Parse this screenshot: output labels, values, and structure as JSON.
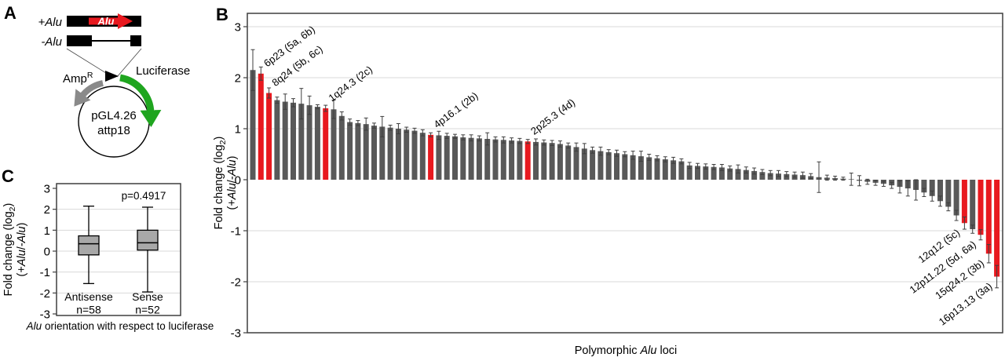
{
  "panel_a": {
    "label": "A",
    "plus_alu": "+Alu",
    "minus_alu": "-Alu",
    "alu_insert": "Alu",
    "amp": "Amp",
    "amp_sup": "R",
    "luciferase": "Luciferase",
    "plasmid_name": "pGL4.26",
    "plasmid_site": "attp18",
    "colors": {
      "alu_red": "#e8191f",
      "luciferase_green": "#1fa51f",
      "amp_gray": "#8a8a8a",
      "construct_black": "#000000"
    }
  },
  "panel_b": {
    "label": "B"
  },
  "panel_c": {
    "label": "C"
  },
  "chart_data": [
    {
      "panel": "B",
      "type": "bar",
      "title": "",
      "ylabel_parts": {
        "pre": "Fold change (log",
        "sub": "2",
        "post": ")",
        "line2": [
          "(+",
          "Alu",
          "/-",
          "Alu",
          ")"
        ]
      },
      "xlabel_parts": [
        "Polymorphic ",
        "Alu",
        " loci"
      ],
      "ylim": [
        -3,
        3
      ],
      "yticks": [
        3,
        2,
        1,
        0,
        -1,
        -2,
        -3
      ],
      "grid": true,
      "bar_color": "#595959",
      "highlight_color": "#e8191f",
      "error_color": "#3f3f3f",
      "values": [
        2.15,
        2.08,
        1.7,
        1.56,
        1.53,
        1.51,
        1.49,
        1.46,
        1.43,
        1.4,
        1.38,
        1.25,
        1.13,
        1.11,
        1.09,
        1.06,
        1.04,
        1.02,
        1.0,
        0.98,
        0.96,
        0.92,
        0.88,
        0.87,
        0.86,
        0.85,
        0.83,
        0.82,
        0.81,
        0.8,
        0.79,
        0.78,
        0.77,
        0.76,
        0.75,
        0.74,
        0.73,
        0.72,
        0.7,
        0.67,
        0.64,
        0.61,
        0.58,
        0.56,
        0.54,
        0.52,
        0.5,
        0.48,
        0.46,
        0.44,
        0.42,
        0.4,
        0.38,
        0.36,
        0.28,
        0.27,
        0.26,
        0.25,
        0.24,
        0.22,
        0.21,
        0.19,
        0.17,
        0.15,
        0.13,
        0.12,
        0.11,
        0.1,
        0.09,
        0.07,
        0.05,
        0.04,
        0.03,
        0.02,
        0.01,
        -0.02,
        -0.04,
        -0.06,
        -0.08,
        -0.11,
        -0.14,
        -0.17,
        -0.2,
        -0.25,
        -0.32,
        -0.42,
        -0.53,
        -0.7,
        -0.85,
        -0.97,
        -1.08,
        -1.45,
        -1.9
      ],
      "errors": [
        0.4,
        0.13,
        0.1,
        0.06,
        0.15,
        0.08,
        0.3,
        0.18,
        0.04,
        0.06,
        0.18,
        0.08,
        0.06,
        0.05,
        0.12,
        0.05,
        0.2,
        0.05,
        0.1,
        0.05,
        0.05,
        0.06,
        0.04,
        0.08,
        0.05,
        0.04,
        0.05,
        0.06,
        0.05,
        0.12,
        0.05,
        0.06,
        0.05,
        0.05,
        0.04,
        0.06,
        0.05,
        0.05,
        0.06,
        0.05,
        0.08,
        0.1,
        0.06,
        0.08,
        0.05,
        0.06,
        0.05,
        0.08,
        0.1,
        0.06,
        0.05,
        0.05,
        0.06,
        0.05,
        0.06,
        0.05,
        0.05,
        0.05,
        0.06,
        0.05,
        0.08,
        0.06,
        0.06,
        0.05,
        0.05,
        0.06,
        0.05,
        0.05,
        0.06,
        0.05,
        0.3,
        0.05,
        0.04,
        0.03,
        0.12,
        0.1,
        0.05,
        0.05,
        0.05,
        0.06,
        0.12,
        0.15,
        0.2,
        0.08,
        0.1,
        0.1,
        0.08,
        0.1,
        0.12,
        0.08,
        0.1,
        0.18,
        0.22
      ],
      "highlights": [
        {
          "index": 1,
          "label": "6p23 (5a, 6b)"
        },
        {
          "index": 2,
          "label": "8q24 (5b, 6c)"
        },
        {
          "index": 9,
          "label": "1q24.3 (2c)"
        },
        {
          "index": 22,
          "label": "4p16.1 (2b)"
        },
        {
          "index": 34,
          "label": "2p25.3 (4d)"
        },
        {
          "index": 88,
          "label": "12q12 (5c)"
        },
        {
          "index": 90,
          "label": "12p11.22 (5d, 6a)"
        },
        {
          "index": 91,
          "label": "15q24.2 (3b)"
        },
        {
          "index": 92,
          "label": "16p13.13 (3a)"
        }
      ]
    },
    {
      "panel": "C",
      "type": "boxplot",
      "p_label": "p=0.4917",
      "ylabel_parts": {
        "pre": "Fold change (log",
        "sub": "2",
        "post": ")",
        "line2": [
          "(+",
          "Alu",
          "/-",
          "Alu",
          ")"
        ]
      },
      "xlabel_parts": [
        "Alu",
        " orientation with respect to luciferase"
      ],
      "ylim": [
        -3,
        3
      ],
      "yticks": [
        3,
        2,
        1,
        0,
        -1,
        -2,
        -3
      ],
      "grid": true,
      "box_fill": "#a8a8a8",
      "groups": [
        {
          "name": "Antisense",
          "n_label": "n=58",
          "whisker_low": -1.55,
          "q1": -0.18,
          "median": 0.35,
          "q3": 0.73,
          "whisker_high": 2.15
        },
        {
          "name": "Sense",
          "n_label": "n=52",
          "whisker_low": -1.95,
          "q1": 0.05,
          "median": 0.4,
          "q3": 1.0,
          "whisker_high": 2.1
        }
      ]
    }
  ]
}
